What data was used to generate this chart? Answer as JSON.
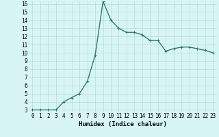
{
  "x": [
    0,
    1,
    2,
    3,
    4,
    5,
    6,
    7,
    8,
    9,
    10,
    11,
    12,
    13,
    14,
    15,
    16,
    17,
    18,
    19,
    20,
    21,
    22,
    23
  ],
  "y": [
    3.0,
    3.0,
    3.0,
    3.0,
    4.0,
    4.5,
    5.0,
    6.5,
    9.7,
    16.3,
    14.0,
    13.0,
    12.5,
    12.5,
    12.2,
    11.5,
    11.5,
    10.2,
    10.5,
    10.7,
    10.7,
    10.5,
    10.3,
    10.0
  ],
  "line_color": "#2e7d6e",
  "marker": "+",
  "marker_size": 3,
  "bg_color": "#d8f5f5",
  "grid_color": "#b8dada",
  "xlabel": "Humidex (Indice chaleur)",
  "ylim_min": 3,
  "ylim_max": 16,
  "xlim_min": 0,
  "xlim_max": 23,
  "yticks": [
    3,
    4,
    5,
    6,
    7,
    8,
    9,
    10,
    11,
    12,
    13,
    14,
    15,
    16
  ],
  "xticks": [
    0,
    1,
    2,
    3,
    4,
    5,
    6,
    7,
    8,
    9,
    10,
    11,
    12,
    13,
    14,
    15,
    16,
    17,
    18,
    19,
    20,
    21,
    22,
    23
  ],
  "tick_fontsize": 5.5,
  "xlabel_fontsize": 6.5,
  "line_width": 1.0
}
